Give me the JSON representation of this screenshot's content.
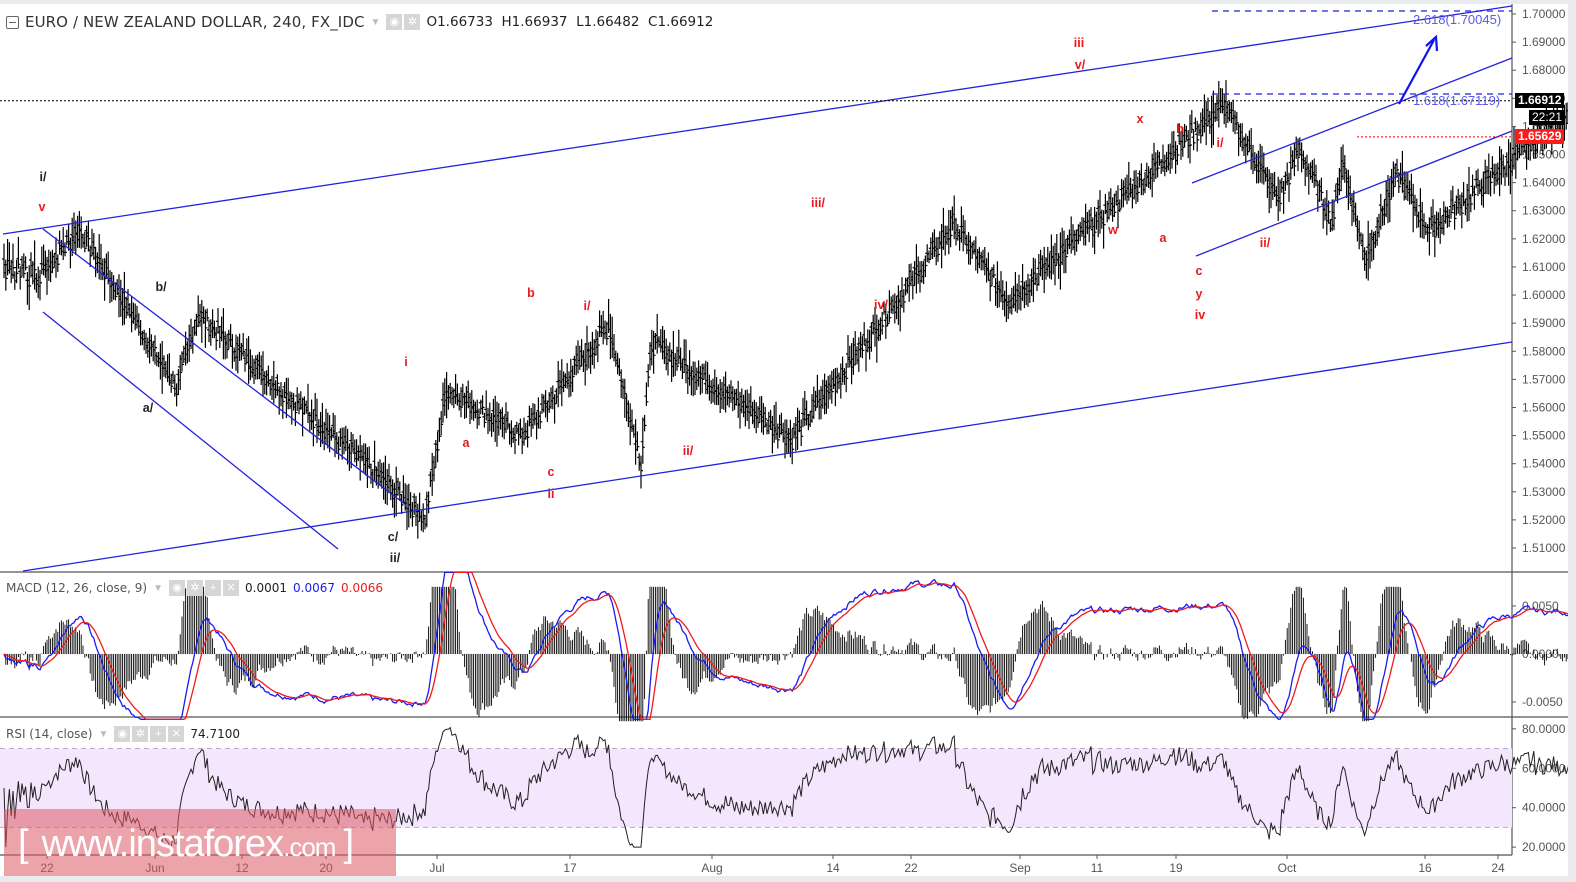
{
  "header": {
    "symbol_title": "EURO / NEW ZEALAND DOLLAR, 240, FX_IDC",
    "ohlc": {
      "open_label": "O",
      "open": "1.66733",
      "high_label": "H",
      "high": "1.66937",
      "low_label": "L",
      "low": "1.66482",
      "close_label": "C",
      "close": "1.66912"
    }
  },
  "price_axis": {
    "ticks": [
      "1.70000",
      "1.69000",
      "1.68000",
      "1.67000",
      "1.66000",
      "1.65000",
      "1.64000",
      "1.63000",
      "1.62000",
      "1.61000",
      "1.60000",
      "1.59000",
      "1.58000",
      "1.57000",
      "1.56000",
      "1.55000",
      "1.54000",
      "1.53000",
      "1.52000",
      "1.51000"
    ],
    "last_price_tag": "1.66912",
    "countdown_tag": "22:21",
    "level_tag": "1.65629"
  },
  "macd": {
    "label": "MACD (12, 26, close, 9)",
    "histogram": "0.0001",
    "macd_value": "0.0067",
    "signal_value": "0.0066",
    "axis_ticks": [
      "0.0050",
      "0.0000",
      "-0.0050"
    ]
  },
  "rsi": {
    "label": "RSI (14, close)",
    "value": "74.7100",
    "axis_ticks": [
      "80.0000",
      "60.0000",
      "40.0000",
      "20.0000"
    ]
  },
  "time_axis": {
    "ticks": [
      "22",
      "Jun",
      "12",
      "20",
      "Jul",
      "17",
      "Aug",
      "14",
      "22",
      "Sep",
      "11",
      "19",
      "Oct",
      "16",
      "24"
    ]
  },
  "annotations": {
    "fib_2618": "2.618(1.70045)",
    "fib_1618": "1.618(1.67119)",
    "wave_labels_black": [
      "i/",
      "b/",
      "a/",
      "c/",
      "ii/"
    ],
    "wave_labels_red": [
      "v",
      "i",
      "a",
      "b",
      "c",
      "ii",
      "i/",
      "ii/",
      "iii/",
      "iv/",
      "iii",
      "v/",
      "w",
      "x",
      "a",
      "b",
      "c",
      "y",
      "iv",
      "i/",
      "ii/"
    ]
  },
  "watermark": {
    "open_bracket": "[",
    "text": "www.instaforex",
    "suffix": ".com",
    "close_bracket": "]"
  },
  "colors": {
    "trendline": "#2222dd",
    "wave_label_red": "#e8191e",
    "macd_line": "#1c1cf0",
    "signal_line": "#f01c1c",
    "rsi_band": "#f3e6fd",
    "last_price_tag_bg": "#000000",
    "level_tag_bg": "#ff1a1a"
  },
  "chart_data": [
    {
      "type": "ohlc",
      "title": "EURO / NEW ZEALAND DOLLAR, 240, FX_IDC",
      "xlabel": "",
      "ylabel": "",
      "ylim": [
        1.502,
        1.712
      ],
      "x_ticks": [
        "22",
        "Jun",
        "12",
        "20",
        "Jul",
        "17",
        "Aug",
        "14",
        "22",
        "Sep",
        "11",
        "19",
        "Oct",
        "16",
        "24"
      ],
      "approx_swing_points": [
        {
          "date": "May 22",
          "price": 1.61
        },
        {
          "date": "May 25",
          "price": 1.6235,
          "label": "v / i/"
        },
        {
          "date": "Jun 3",
          "price": 1.567,
          "label": "a/"
        },
        {
          "date": "Jun 5",
          "price": 1.593,
          "label": "b/"
        },
        {
          "date": "Jun 26",
          "price": 1.521,
          "label": "c/ ii/"
        },
        {
          "date": "Jun 28",
          "price": 1.567,
          "label": "i"
        },
        {
          "date": "Jul 5",
          "price": 1.55,
          "label": "a"
        },
        {
          "date": "Jul 13",
          "price": 1.589,
          "label": "b"
        },
        {
          "date": "Jul 16",
          "price": 1.541,
          "label": "c ii"
        },
        {
          "date": "Jul 17",
          "price": 1.583,
          "label": "i/"
        },
        {
          "date": "Jul 30",
          "price": 1.549,
          "label": "ii/"
        },
        {
          "date": "Aug 14",
          "price": 1.625,
          "label": "iii/"
        },
        {
          "date": "Aug 19",
          "price": 1.598,
          "label": "iv/"
        },
        {
          "date": "Sep 8",
          "price": 1.6675,
          "label": "v/ iii"
        },
        {
          "date": "Sep 13",
          "price": 1.634,
          "label": "w"
        },
        {
          "date": "Sep 15",
          "price": 1.652,
          "label": "x"
        },
        {
          "date": "Sep 18",
          "price": 1.626,
          "label": "a"
        },
        {
          "date": "Sep 19",
          "price": 1.648,
          "label": "b"
        },
        {
          "date": "Sep 21",
          "price": 1.6135,
          "label": "c y iv"
        },
        {
          "date": "Sep 24",
          "price": 1.643,
          "label": "i/"
        },
        {
          "date": "Sep 27",
          "price": 1.623,
          "label": "ii/"
        },
        {
          "date": "Oct 11",
          "price": 1.6694
        }
      ],
      "last": {
        "open": 1.66733,
        "high": 1.66937,
        "low": 1.66482,
        "close": 1.66912
      },
      "horizontal_levels": [
        {
          "price": 1.70045,
          "label": "2.618(1.70045)",
          "style": "dashed-blue"
        },
        {
          "price": 1.67119,
          "label": "1.618(1.67119)",
          "style": "dashed-blue"
        },
        {
          "price": 1.66912,
          "label": "last",
          "style": "dotted-black"
        },
        {
          "price": 1.65629,
          "label": "support",
          "style": "dotted-red"
        }
      ],
      "projection": "arrow up toward 2.618(1.70045)"
    },
    {
      "type": "line",
      "title": "MACD (12, 26, close, 9)",
      "series": [
        {
          "name": "MACD",
          "color": "#1c1cf0",
          "last": 0.0067
        },
        {
          "name": "Signal",
          "color": "#f01c1c",
          "last": 0.0066
        },
        {
          "name": "Histogram",
          "color": "#000000",
          "last": 0.0001
        }
      ],
      "ylim": [
        -0.0075,
        0.0095
      ],
      "y_ticks": [
        "0.0050",
        "0.0000",
        "-0.0050"
      ]
    },
    {
      "type": "line",
      "title": "RSI (14, close)",
      "series": [
        {
          "name": "RSI",
          "last": 74.71
        }
      ],
      "ylim": [
        16,
        86
      ],
      "y_ticks": [
        "80.0000",
        "60.0000",
        "40.0000",
        "20.0000"
      ],
      "bands": [
        30,
        70
      ]
    }
  ]
}
